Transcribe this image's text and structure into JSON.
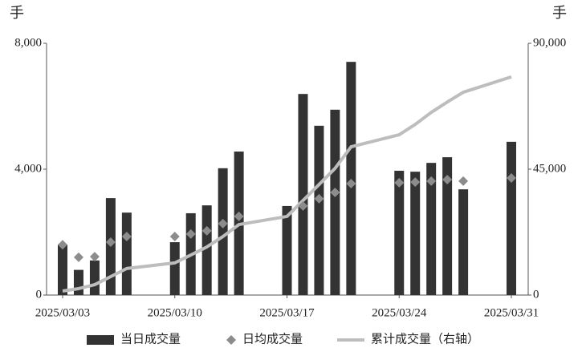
{
  "chart_data": {
    "type": "bar_scatter_line",
    "ylabel": "手",
    "y2label": "手",
    "x": [
      "2025/03/03",
      "2025/03/04",
      "2025/03/05",
      "2025/03/06",
      "2025/03/07",
      "2025/03/10",
      "2025/03/11",
      "2025/03/12",
      "2025/03/13",
      "2025/03/14",
      "2025/03/17",
      "2025/03/18",
      "2025/03/19",
      "2025/03/20",
      "2025/03/21",
      "2025/03/24",
      "2025/03/25",
      "2025/03/26",
      "2025/03/27",
      "2025/03/28",
      "2025/03/31"
    ],
    "xticks": [
      "2025/03/03",
      "2025/03/10",
      "2025/03/17",
      "2025/03/24",
      "2025/03/31"
    ],
    "ylim": [
      0,
      8000
    ],
    "yticks": [
      0,
      {
        "value": 4000,
        "label": "4,000"
      },
      {
        "value": 8000,
        "label": "8,000"
      }
    ],
    "y2lim": [
      0,
      90000
    ],
    "y2ticks": [
      0,
      {
        "value": 45000,
        "label": "45,000"
      },
      {
        "value": 90000,
        "label": "90,000"
      }
    ],
    "legend": "bottom",
    "series": [
      {
        "name": "当日成交量",
        "type": "bar",
        "color": "#333333",
        "values": [
          1600,
          800,
          1100,
          3080,
          2620,
          1680,
          2600,
          2850,
          4030,
          4560,
          2830,
          6390,
          5380,
          5890,
          7410,
          3950,
          3920,
          4200,
          4380,
          3360,
          4870
        ]
      },
      {
        "name": "日均成交量",
        "type": "scatter",
        "color": "#8c8c8c",
        "values": [
          1600,
          1200,
          1220,
          1680,
          1860,
          1860,
          1940,
          2040,
          2270,
          2500,
          null,
          2830,
          3060,
          3260,
          3540,
          3570,
          3590,
          3620,
          3670,
          3620,
          3720
        ]
      },
      {
        "name": "累计成交量（右轴）",
        "type": "line",
        "axis": "y2",
        "color": "#bdbdbd",
        "values": [
          1430,
          2300,
          3700,
          6600,
          9500,
          11500,
          14300,
          17200,
          20900,
          25200,
          28100,
          33800,
          39500,
          45300,
          53000,
          57300,
          61000,
          65300,
          69000,
          72500,
          78000
        ]
      }
    ]
  }
}
